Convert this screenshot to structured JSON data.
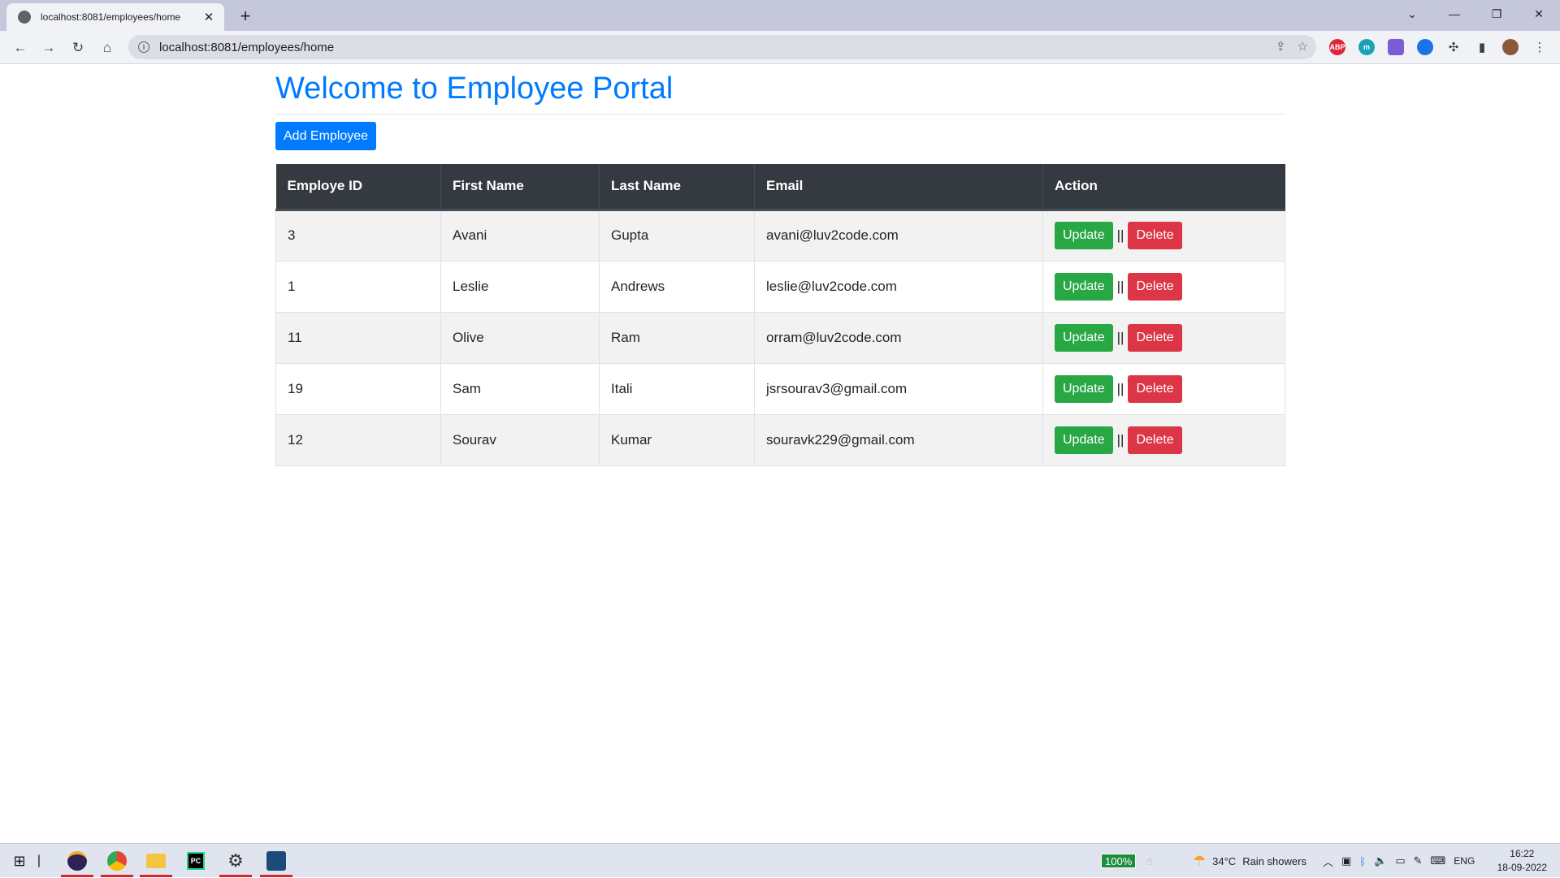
{
  "browser": {
    "tab_title": "localhost:8081/employees/home",
    "url": "localhost:8081/employees/home",
    "extensions": [
      "ABP",
      "m"
    ]
  },
  "page": {
    "title": "Welcome to Employee Portal",
    "add_button": "Add Employee",
    "table": {
      "headers": [
        "Employe ID",
        "First Name",
        "Last Name",
        "Email",
        "Action"
      ],
      "rows": [
        {
          "id": "3",
          "first": "Avani",
          "last": "Gupta",
          "email": "avani@luv2code.com"
        },
        {
          "id": "1",
          "first": "Leslie",
          "last": "Andrews",
          "email": "leslie@luv2code.com"
        },
        {
          "id": "11",
          "first": "Olive",
          "last": "Ram",
          "email": "orram@luv2code.com"
        },
        {
          "id": "19",
          "first": "Sam",
          "last": "Itali",
          "email": "jsrsourav3@gmail.com"
        },
        {
          "id": "12",
          "first": "Sourav",
          "last": "Kumar",
          "email": "souravk229@gmail.com"
        }
      ],
      "update_label": "Update",
      "delete_label": "Delete",
      "separator": "||"
    }
  },
  "taskbar": {
    "battery": "100%",
    "weather_temp": "34°C",
    "weather_text": "Rain showers",
    "language": "ENG",
    "time": "16:22",
    "date": "18-09-2022"
  }
}
